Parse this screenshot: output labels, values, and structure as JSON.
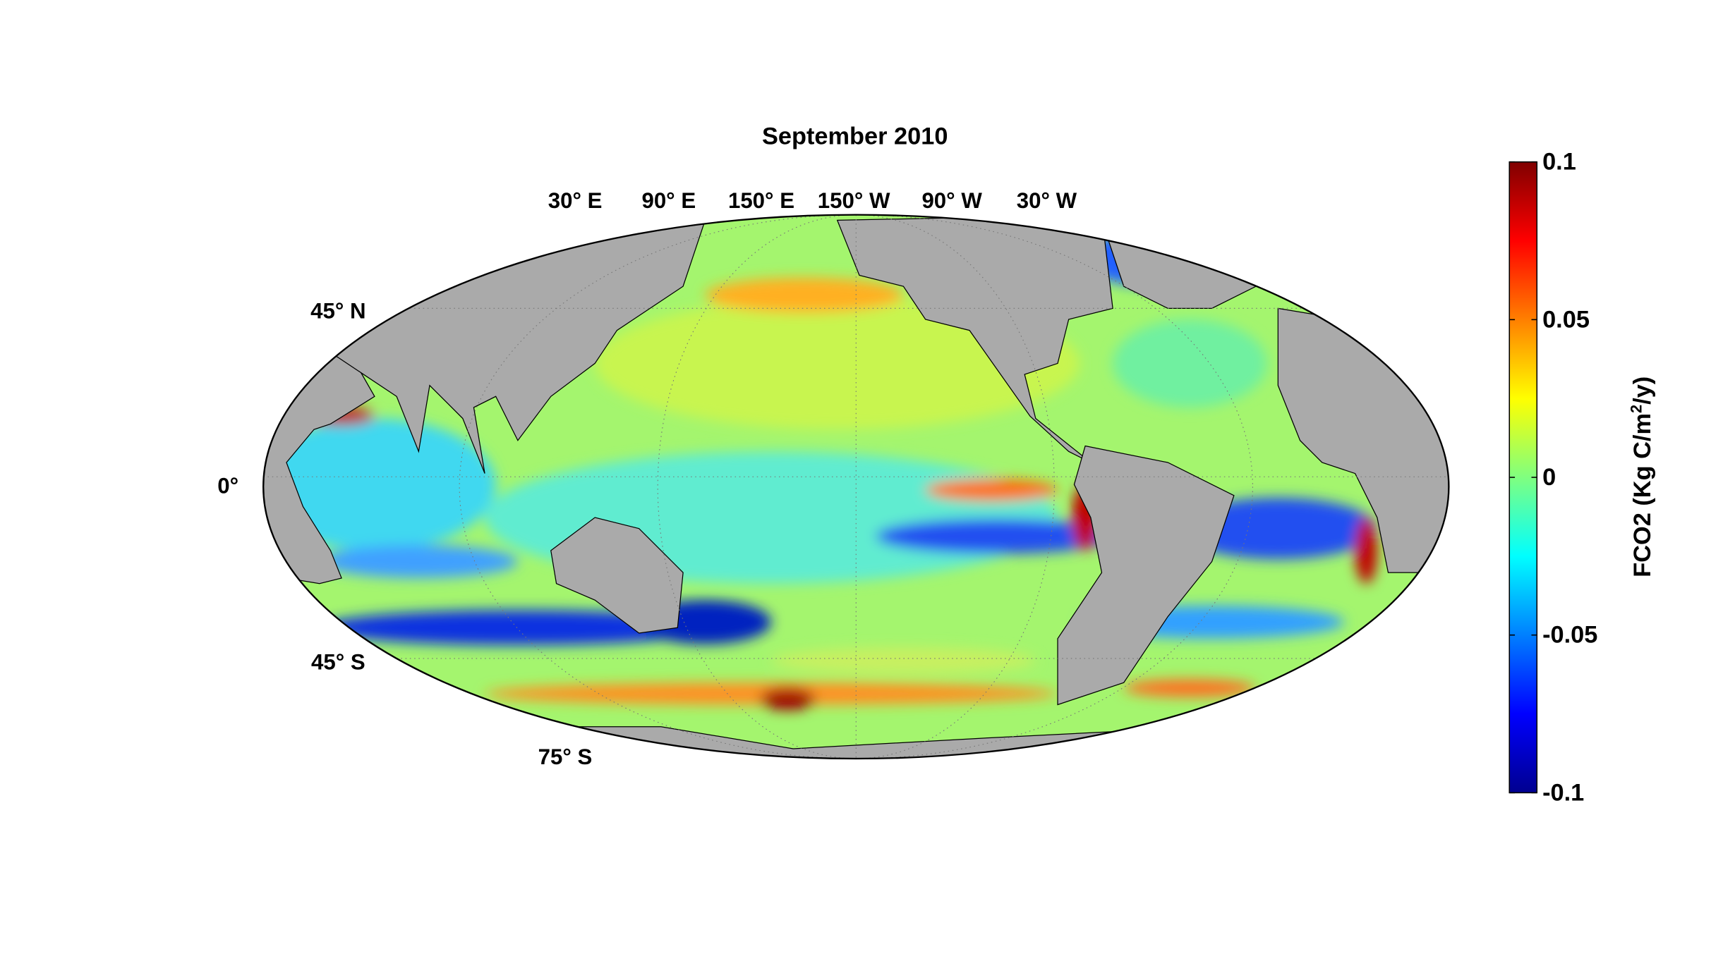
{
  "title": "September 2010",
  "lon_labels": [
    "30° E",
    "90° E",
    "150° E",
    "150° W",
    "90° W",
    "30° W"
  ],
  "lat_labels": [
    "45° N",
    "0°",
    "45° S",
    "75° S"
  ],
  "colorbar": {
    "label": "FCO2 (Kg C/m",
    "label_sup": "2",
    "label_end": "/y)",
    "lim": [
      -0.1,
      0.1
    ],
    "ticks": [
      -0.1,
      -0.05,
      0,
      0.05,
      0.1
    ]
  }
}
